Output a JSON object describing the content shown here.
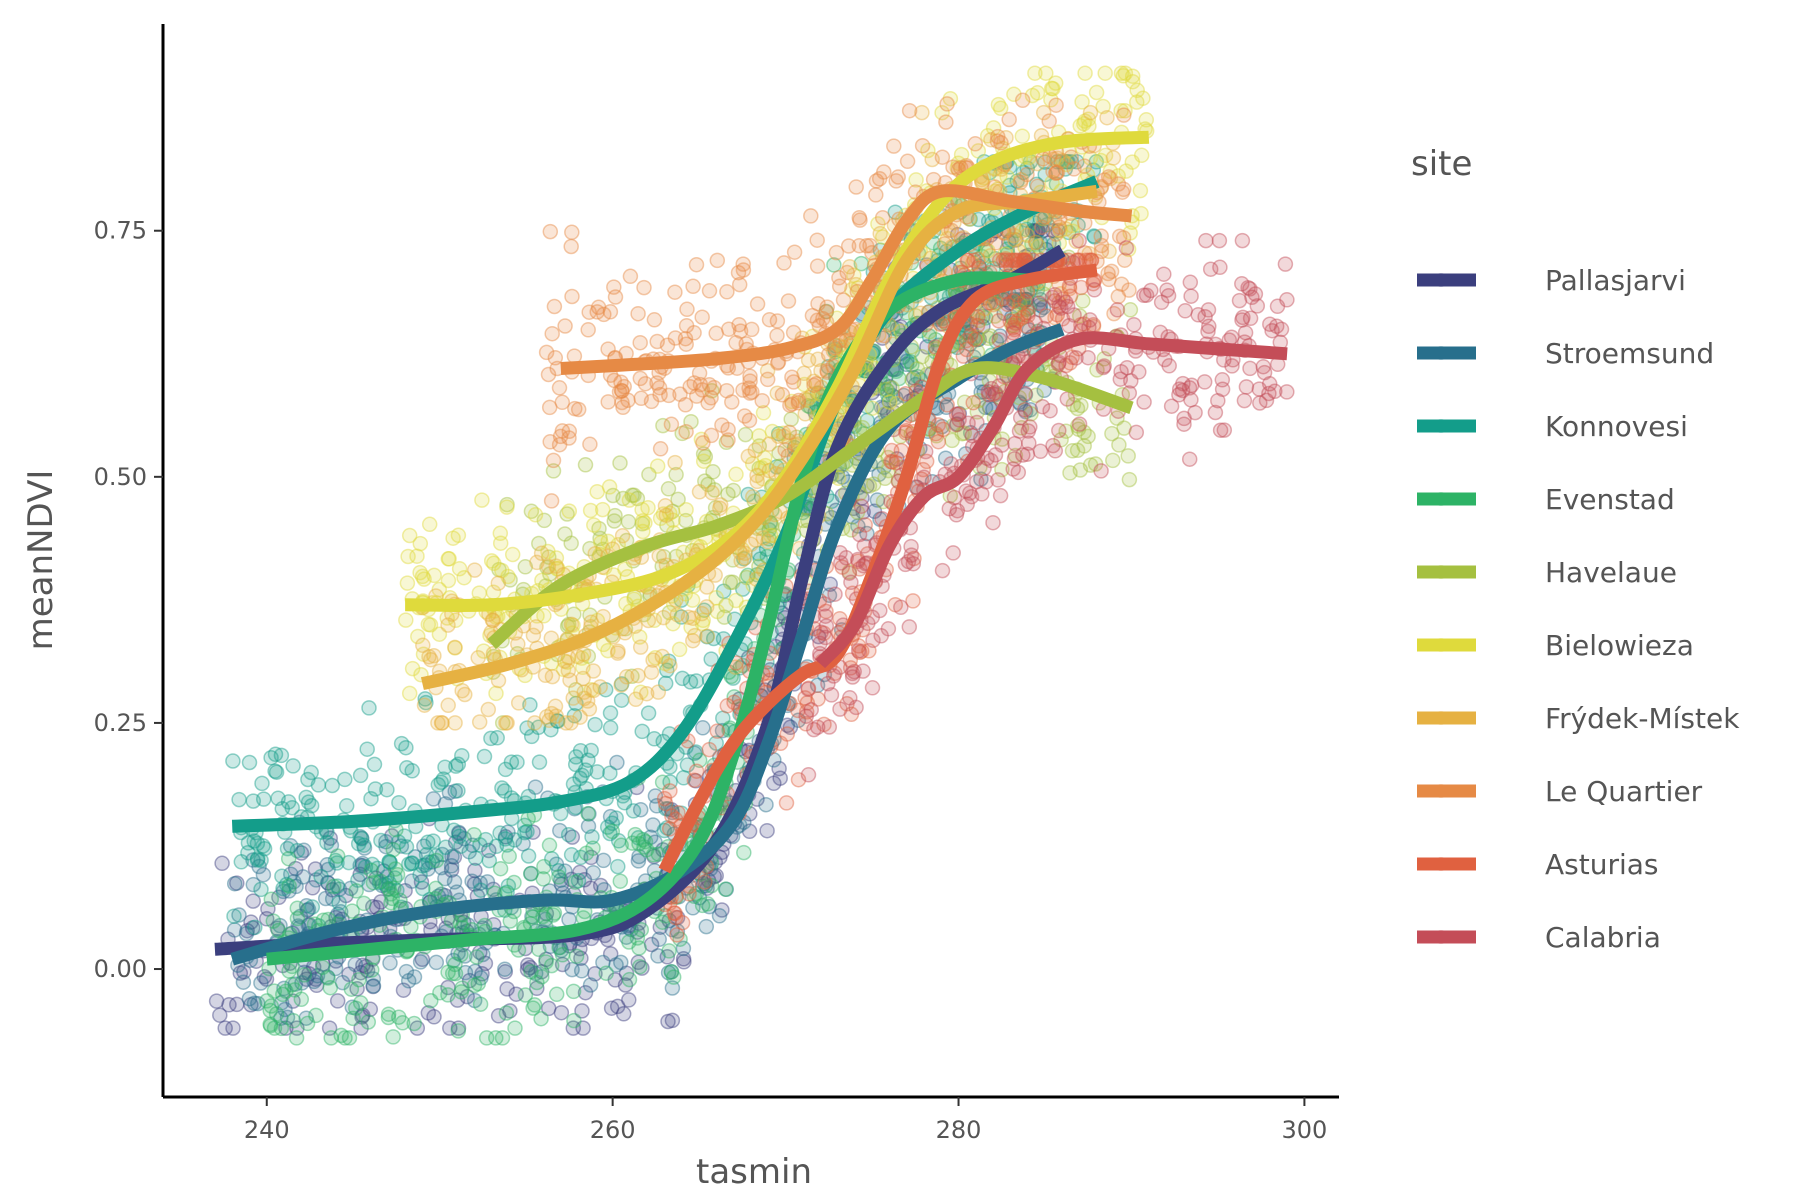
{
  "chart_data": {
    "type": "scatter",
    "xlabel": "tasmin",
    "ylabel": "meanNDVI",
    "xlim": [
      234,
      302
    ],
    "ylim": [
      -0.13,
      0.96
    ],
    "xticks": [
      240,
      260,
      280,
      300
    ],
    "yticks": [
      0.0,
      0.25,
      0.5,
      0.75
    ],
    "ytick_labels": [
      "0.00",
      "0.25",
      "0.50",
      "0.75"
    ],
    "grid": false,
    "legend": {
      "title": "site",
      "position": "right"
    },
    "series": [
      {
        "name": "Pallasjarvi",
        "color": "#3b3f7e",
        "cloud": {
          "x": [
            237,
            286
          ],
          "y_low": -0.06,
          "y_high": 0.75,
          "n": 420
        },
        "smooth": [
          [
            237,
            0.02
          ],
          [
            242,
            0.025
          ],
          [
            250,
            0.03
          ],
          [
            258,
            0.035
          ],
          [
            262,
            0.06
          ],
          [
            266,
            0.13
          ],
          [
            269,
            0.25
          ],
          [
            271,
            0.4
          ],
          [
            273,
            0.53
          ],
          [
            276,
            0.62
          ],
          [
            279,
            0.67
          ],
          [
            283,
            0.7
          ],
          [
            286,
            0.73
          ]
        ]
      },
      {
        "name": "Stroemsund",
        "color": "#276f8c",
        "cloud": {
          "x": [
            238,
            286
          ],
          "y_low": -0.05,
          "y_high": 0.68,
          "n": 420
        },
        "smooth": [
          [
            238,
            0.01
          ],
          [
            244,
            0.04
          ],
          [
            250,
            0.06
          ],
          [
            256,
            0.07
          ],
          [
            260,
            0.07
          ],
          [
            264,
            0.1
          ],
          [
            267,
            0.15
          ],
          [
            269,
            0.23
          ],
          [
            271,
            0.34
          ],
          [
            273,
            0.45
          ],
          [
            276,
            0.55
          ],
          [
            280,
            0.6
          ],
          [
            283,
            0.63
          ],
          [
            286,
            0.65
          ]
        ]
      },
      {
        "name": "Konnovesi",
        "color": "#139d8a",
        "cloud": {
          "x": [
            238,
            288
          ],
          "y_low": -0.08,
          "y_high": 0.82,
          "n": 460
        },
        "smooth": [
          [
            238,
            0.145
          ],
          [
            245,
            0.15
          ],
          [
            252,
            0.16
          ],
          [
            257,
            0.17
          ],
          [
            261,
            0.19
          ],
          [
            264,
            0.24
          ],
          [
            267,
            0.33
          ],
          [
            270,
            0.44
          ],
          [
            273,
            0.58
          ],
          [
            276,
            0.67
          ],
          [
            280,
            0.73
          ],
          [
            284,
            0.77
          ],
          [
            288,
            0.8
          ]
        ]
      },
      {
        "name": "Evenstad",
        "color": "#2db366",
        "cloud": {
          "x": [
            240,
            285
          ],
          "y_low": -0.07,
          "y_high": 0.78,
          "n": 420
        },
        "smooth": [
          [
            240,
            0.01
          ],
          [
            246,
            0.02
          ],
          [
            252,
            0.03
          ],
          [
            258,
            0.04
          ],
          [
            262,
            0.07
          ],
          [
            265,
            0.13
          ],
          [
            267,
            0.22
          ],
          [
            269,
            0.35
          ],
          [
            271,
            0.5
          ],
          [
            273,
            0.6
          ],
          [
            276,
            0.67
          ],
          [
            280,
            0.7
          ],
          [
            284,
            0.7
          ]
        ]
      },
      {
        "name": "Havelaue",
        "color": "#a5c040",
        "cloud": {
          "x": [
            253,
            290
          ],
          "y_low": 0.25,
          "y_high": 0.75,
          "n": 320
        },
        "smooth": [
          [
            253,
            0.33
          ],
          [
            257,
            0.39
          ],
          [
            262,
            0.43
          ],
          [
            266,
            0.45
          ],
          [
            270,
            0.48
          ],
          [
            274,
            0.53
          ],
          [
            278,
            0.58
          ],
          [
            281,
            0.61
          ],
          [
            285,
            0.6
          ],
          [
            290,
            0.57
          ]
        ]
      },
      {
        "name": "Bielowieza",
        "color": "#dfda3c",
        "cloud": {
          "x": [
            248,
            291
          ],
          "y_low": 0.28,
          "y_high": 0.91,
          "n": 380
        },
        "smooth": [
          [
            248,
            0.37
          ],
          [
            253,
            0.37
          ],
          [
            258,
            0.38
          ],
          [
            263,
            0.4
          ],
          [
            267,
            0.44
          ],
          [
            270,
            0.5
          ],
          [
            273,
            0.59
          ],
          [
            276,
            0.7
          ],
          [
            279,
            0.78
          ],
          [
            282,
            0.82
          ],
          [
            286,
            0.84
          ],
          [
            291,
            0.845
          ]
        ]
      },
      {
        "name": "Frýdek-Místek",
        "color": "#e6b142",
        "cloud": {
          "x": [
            249,
            289
          ],
          "y_low": 0.25,
          "y_high": 0.87,
          "n": 340
        },
        "smooth": [
          [
            249,
            0.29
          ],
          [
            254,
            0.31
          ],
          [
            259,
            0.34
          ],
          [
            264,
            0.39
          ],
          [
            268,
            0.45
          ],
          [
            271,
            0.52
          ],
          [
            274,
            0.61
          ],
          [
            277,
            0.72
          ],
          [
            280,
            0.77
          ],
          [
            284,
            0.78
          ],
          [
            288,
            0.79
          ]
        ]
      },
      {
        "name": "Le Quartier",
        "color": "#e68a45",
        "cloud": {
          "x": [
            256,
            290
          ],
          "y_low": 0.4,
          "y_high": 0.9,
          "n": 360
        },
        "smooth": [
          [
            257,
            0.61
          ],
          [
            262,
            0.615
          ],
          [
            266,
            0.62
          ],
          [
            270,
            0.63
          ],
          [
            273,
            0.65
          ],
          [
            275,
            0.7
          ],
          [
            277,
            0.76
          ],
          [
            279,
            0.79
          ],
          [
            283,
            0.78
          ],
          [
            287,
            0.77
          ],
          [
            290,
            0.765
          ]
        ]
      },
      {
        "name": "Asturias",
        "color": "#e06140",
        "cloud": {
          "x": [
            263,
            288
          ],
          "y_low": -0.05,
          "y_high": 0.72,
          "n": 300
        },
        "smooth": [
          [
            263,
            0.1
          ],
          [
            265,
            0.17
          ],
          [
            267,
            0.23
          ],
          [
            269,
            0.27
          ],
          [
            271,
            0.3
          ],
          [
            273,
            0.32
          ],
          [
            275,
            0.4
          ],
          [
            277,
            0.5
          ],
          [
            279,
            0.62
          ],
          [
            281,
            0.68
          ],
          [
            284,
            0.7
          ],
          [
            288,
            0.71
          ]
        ]
      },
      {
        "name": "Calabria",
        "color": "#c44d58",
        "cloud": {
          "x": [
            271,
            299
          ],
          "y_low": 0.05,
          "y_high": 0.74,
          "n": 320
        },
        "smooth": [
          [
            272,
            0.31
          ],
          [
            274,
            0.35
          ],
          [
            276,
            0.43
          ],
          [
            278,
            0.48
          ],
          [
            280,
            0.5
          ],
          [
            282,
            0.55
          ],
          [
            284,
            0.61
          ],
          [
            287,
            0.64
          ],
          [
            291,
            0.635
          ],
          [
            295,
            0.63
          ],
          [
            299,
            0.625
          ]
        ]
      }
    ]
  }
}
